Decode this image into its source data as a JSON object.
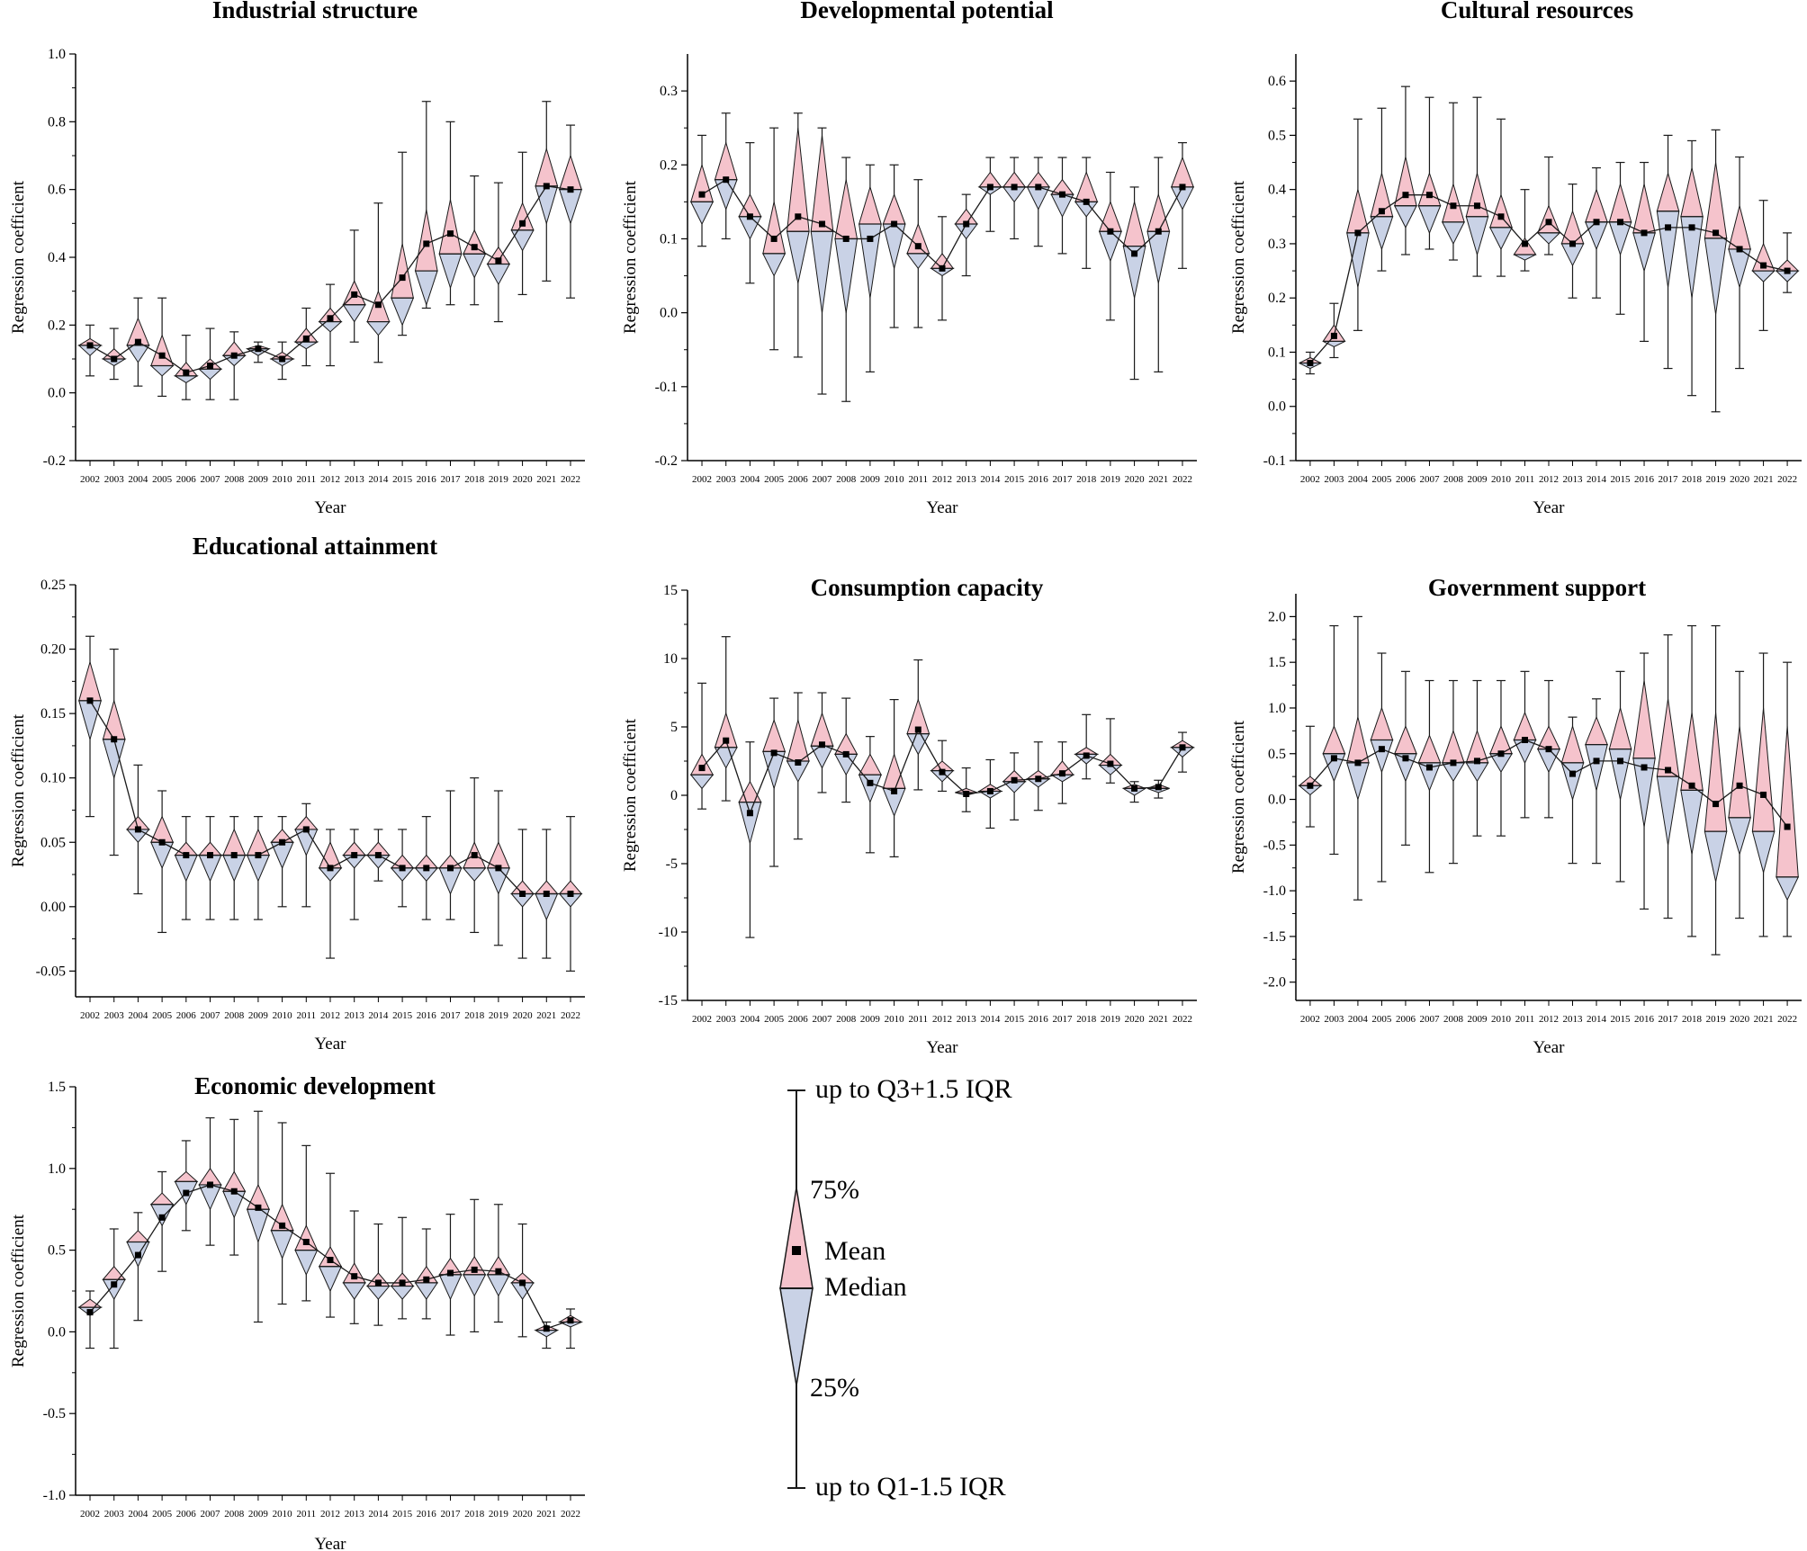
{
  "chart_data": [
    {
      "type": "violin-diamond",
      "title": "Industrial structure",
      "xlabel": "Year",
      "ylabel": "Regression coefficient",
      "ylim": [
        -0.2,
        1.0
      ],
      "yticks": [
        "-0.2",
        "0.0",
        "0.2",
        "0.4",
        "0.6",
        "0.8",
        "1.0"
      ],
      "categories": [
        "2002",
        "2003",
        "2004",
        "2005",
        "2006",
        "2007",
        "2008",
        "2009",
        "2010",
        "2011",
        "2012",
        "2013",
        "2014",
        "2015",
        "2016",
        "2017",
        "2018",
        "2019",
        "2020",
        "2021",
        "2022"
      ],
      "lower": [
        0.05,
        0.04,
        0.02,
        -0.01,
        -0.02,
        -0.02,
        -0.02,
        0.09,
        0.04,
        0.08,
        0.08,
        0.15,
        0.09,
        0.17,
        0.25,
        0.26,
        0.26,
        0.21,
        0.29,
        0.33,
        0.28
      ],
      "q1": [
        0.11,
        0.08,
        0.09,
        0.05,
        0.03,
        0.04,
        0.08,
        0.11,
        0.08,
        0.13,
        0.18,
        0.21,
        0.17,
        0.2,
        0.26,
        0.31,
        0.34,
        0.32,
        0.42,
        0.5,
        0.5
      ],
      "median": [
        0.14,
        0.1,
        0.14,
        0.08,
        0.05,
        0.07,
        0.11,
        0.13,
        0.1,
        0.15,
        0.21,
        0.26,
        0.21,
        0.28,
        0.36,
        0.41,
        0.41,
        0.38,
        0.48,
        0.61,
        0.6
      ],
      "q3": [
        0.16,
        0.13,
        0.22,
        0.17,
        0.09,
        0.1,
        0.15,
        0.14,
        0.12,
        0.19,
        0.25,
        0.33,
        0.3,
        0.44,
        0.54,
        0.57,
        0.48,
        0.43,
        0.56,
        0.72,
        0.7
      ],
      "upper": [
        0.2,
        0.19,
        0.28,
        0.28,
        0.17,
        0.19,
        0.18,
        0.15,
        0.15,
        0.25,
        0.32,
        0.48,
        0.56,
        0.71,
        0.86,
        0.8,
        0.64,
        0.62,
        0.71,
        0.86,
        0.79
      ],
      "mean": [
        0.14,
        0.1,
        0.15,
        0.11,
        0.06,
        0.08,
        0.11,
        0.13,
        0.1,
        0.16,
        0.22,
        0.29,
        0.26,
        0.34,
        0.44,
        0.47,
        0.43,
        0.39,
        0.5,
        0.61,
        0.6
      ]
    },
    {
      "type": "violin-diamond",
      "title": "Developmental potential",
      "xlabel": "Year",
      "ylabel": "Regression coefficient",
      "ylim": [
        -0.2,
        0.35
      ],
      "yticks": [
        "-0.2",
        "-0.1",
        "0.0",
        "0.1",
        "0.2",
        "0.3"
      ],
      "categories": [
        "2002",
        "2003",
        "2004",
        "2005",
        "2006",
        "2007",
        "2008",
        "2009",
        "2010",
        "2011",
        "2012",
        "2013",
        "2014",
        "2015",
        "2016",
        "2017",
        "2018",
        "2019",
        "2020",
        "2021",
        "2022"
      ],
      "lower": [
        0.09,
        0.1,
        0.04,
        -0.05,
        -0.06,
        -0.11,
        -0.12,
        -0.08,
        -0.02,
        -0.02,
        -0.01,
        0.05,
        0.11,
        0.1,
        0.09,
        0.08,
        0.06,
        -0.01,
        -0.09,
        -0.08,
        0.06
      ],
      "q1": [
        0.12,
        0.14,
        0.1,
        0.05,
        0.04,
        0.0,
        0.0,
        0.02,
        0.06,
        0.06,
        0.05,
        0.1,
        0.16,
        0.15,
        0.14,
        0.13,
        0.13,
        0.07,
        0.02,
        0.04,
        0.14
      ],
      "median": [
        0.15,
        0.18,
        0.13,
        0.08,
        0.11,
        0.11,
        0.1,
        0.12,
        0.12,
        0.08,
        0.06,
        0.12,
        0.17,
        0.17,
        0.17,
        0.16,
        0.15,
        0.11,
        0.09,
        0.11,
        0.17
      ],
      "q3": [
        0.2,
        0.23,
        0.16,
        0.15,
        0.25,
        0.24,
        0.18,
        0.17,
        0.16,
        0.12,
        0.08,
        0.14,
        0.19,
        0.19,
        0.19,
        0.18,
        0.19,
        0.15,
        0.15,
        0.16,
        0.21
      ],
      "upper": [
        0.24,
        0.27,
        0.23,
        0.25,
        0.27,
        0.25,
        0.21,
        0.2,
        0.2,
        0.18,
        0.13,
        0.16,
        0.21,
        0.21,
        0.21,
        0.21,
        0.21,
        0.19,
        0.17,
        0.21,
        0.23
      ],
      "mean": [
        0.16,
        0.18,
        0.13,
        0.1,
        0.13,
        0.12,
        0.1,
        0.1,
        0.12,
        0.09,
        0.06,
        0.12,
        0.17,
        0.17,
        0.17,
        0.16,
        0.15,
        0.11,
        0.08,
        0.11,
        0.17
      ]
    },
    {
      "type": "violin-diamond",
      "title": "Cultural resources",
      "xlabel": "Year",
      "ylabel": "Regression coefficient",
      "ylim": [
        -0.1,
        0.65
      ],
      "yticks": [
        "-0.1",
        "0.0",
        "0.1",
        "0.2",
        "0.3",
        "0.4",
        "0.5",
        "0.6"
      ],
      "categories": [
        "2002",
        "2003",
        "2004",
        "2005",
        "2006",
        "2007",
        "2008",
        "2009",
        "2010",
        "2011",
        "2012",
        "2013",
        "2014",
        "2015",
        "2016",
        "2017",
        "2018",
        "2019",
        "2020",
        "2021",
        "2022"
      ],
      "lower": [
        0.06,
        0.09,
        0.14,
        0.25,
        0.28,
        0.29,
        0.27,
        0.24,
        0.24,
        0.25,
        0.28,
        0.2,
        0.2,
        0.17,
        0.12,
        0.07,
        0.02,
        -0.01,
        0.07,
        0.14,
        0.21
      ],
      "q1": [
        0.07,
        0.11,
        0.22,
        0.29,
        0.33,
        0.32,
        0.3,
        0.28,
        0.29,
        0.27,
        0.3,
        0.26,
        0.29,
        0.28,
        0.25,
        0.22,
        0.2,
        0.17,
        0.22,
        0.23,
        0.23
      ],
      "median": [
        0.08,
        0.12,
        0.32,
        0.35,
        0.37,
        0.37,
        0.34,
        0.35,
        0.33,
        0.28,
        0.32,
        0.3,
        0.34,
        0.34,
        0.32,
        0.36,
        0.35,
        0.31,
        0.29,
        0.25,
        0.25
      ],
      "q3": [
        0.09,
        0.15,
        0.4,
        0.43,
        0.46,
        0.43,
        0.41,
        0.43,
        0.39,
        0.31,
        0.37,
        0.36,
        0.4,
        0.41,
        0.41,
        0.43,
        0.44,
        0.45,
        0.37,
        0.3,
        0.27
      ],
      "upper": [
        0.1,
        0.19,
        0.53,
        0.55,
        0.59,
        0.57,
        0.56,
        0.57,
        0.53,
        0.4,
        0.46,
        0.41,
        0.44,
        0.45,
        0.45,
        0.5,
        0.49,
        0.51,
        0.46,
        0.38,
        0.32
      ],
      "mean": [
        0.08,
        0.13,
        0.32,
        0.36,
        0.39,
        0.39,
        0.37,
        0.37,
        0.35,
        0.3,
        0.34,
        0.3,
        0.34,
        0.34,
        0.32,
        0.33,
        0.33,
        0.32,
        0.29,
        0.26,
        0.25
      ]
    },
    {
      "type": "violin-diamond",
      "title": "Educational attainment",
      "xlabel": "Year",
      "ylabel": "Regression coefficient",
      "ylim": [
        -0.07,
        0.25
      ],
      "yticks": [
        "-0.05",
        "0.00",
        "0.05",
        "0.10",
        "0.15",
        "0.20",
        "0.25"
      ],
      "categories": [
        "2002",
        "2003",
        "2004",
        "2005",
        "2006",
        "2007",
        "2008",
        "2009",
        "2010",
        "2011",
        "2012",
        "2013",
        "2014",
        "2015",
        "2016",
        "2017",
        "2018",
        "2019",
        "2020",
        "2021",
        "2022"
      ],
      "lower": [
        0.07,
        0.04,
        0.01,
        -0.02,
        -0.01,
        -0.01,
        -0.01,
        -0.01,
        0.0,
        0.0,
        -0.04,
        -0.01,
        0.02,
        0.0,
        -0.01,
        -0.01,
        -0.02,
        -0.03,
        -0.04,
        -0.04,
        -0.05
      ],
      "q1": [
        0.13,
        0.1,
        0.05,
        0.03,
        0.02,
        0.02,
        0.02,
        0.02,
        0.03,
        0.04,
        0.02,
        0.03,
        0.03,
        0.02,
        0.02,
        0.01,
        0.02,
        0.01,
        0.0,
        -0.01,
        0.0
      ],
      "median": [
        0.16,
        0.13,
        0.06,
        0.05,
        0.04,
        0.04,
        0.04,
        0.04,
        0.05,
        0.06,
        0.03,
        0.04,
        0.04,
        0.03,
        0.03,
        0.03,
        0.03,
        0.03,
        0.01,
        0.01,
        0.01
      ],
      "q3": [
        0.19,
        0.16,
        0.07,
        0.07,
        0.05,
        0.05,
        0.06,
        0.06,
        0.06,
        0.07,
        0.05,
        0.05,
        0.05,
        0.04,
        0.04,
        0.04,
        0.05,
        0.05,
        0.02,
        0.02,
        0.02
      ],
      "upper": [
        0.21,
        0.2,
        0.11,
        0.09,
        0.07,
        0.07,
        0.07,
        0.07,
        0.07,
        0.08,
        0.06,
        0.06,
        0.06,
        0.06,
        0.07,
        0.09,
        0.1,
        0.09,
        0.06,
        0.06,
        0.07
      ],
      "mean": [
        0.16,
        0.13,
        0.06,
        0.05,
        0.04,
        0.04,
        0.04,
        0.04,
        0.05,
        0.06,
        0.03,
        0.04,
        0.04,
        0.03,
        0.03,
        0.03,
        0.04,
        0.03,
        0.01,
        0.01,
        0.01
      ]
    },
    {
      "type": "violin-diamond",
      "title": "Consumption capacity",
      "xlabel": "Year",
      "ylabel": "Regression coefficient",
      "ylim": [
        -15,
        15
      ],
      "yticks": [
        "-15",
        "-10",
        "-5",
        "0",
        "5",
        "10",
        "15"
      ],
      "categories": [
        "2002",
        "2003",
        "2004",
        "2005",
        "2006",
        "2007",
        "2008",
        "2009",
        "2010",
        "2011",
        "2012",
        "2013",
        "2014",
        "2015",
        "2016",
        "2017",
        "2018",
        "2019",
        "2020",
        "2021",
        "2022"
      ],
      "lower": [
        -1,
        -0.4,
        -10.4,
        -5.2,
        -3.2,
        0.2,
        -0.5,
        -4.2,
        -4.5,
        0.4,
        0.3,
        -1.2,
        -2.4,
        -1.8,
        -1.1,
        -0.6,
        1.2,
        0.9,
        -0.5,
        -0.2,
        1.7
      ],
      "q1": [
        0.5,
        2,
        -3.5,
        0.5,
        1,
        2,
        1.5,
        -0.5,
        -1.5,
        3,
        1,
        0,
        -0.2,
        0.2,
        0.6,
        1,
        2.3,
        1.5,
        0,
        0.2,
        2.8
      ],
      "median": [
        1.5,
        3.5,
        -0.5,
        3.2,
        2.5,
        3.6,
        3,
        1.5,
        0.5,
        4.5,
        1.8,
        0.2,
        0.3,
        1,
        1.2,
        1.5,
        3,
        2.2,
        0.5,
        0.5,
        3.5
      ],
      "q3": [
        3,
        6,
        1,
        5.5,
        5.5,
        6,
        4.5,
        3,
        3,
        7,
        2.5,
        0.5,
        0.8,
        1.8,
        1.8,
        2.5,
        3.5,
        3,
        0.8,
        0.8,
        4
      ],
      "upper": [
        8.2,
        11.6,
        3.9,
        7.1,
        7.5,
        7.5,
        7.1,
        4.3,
        7,
        9.9,
        4,
        2,
        2.6,
        3.1,
        3.9,
        3.9,
        5.9,
        5.6,
        1,
        1.1,
        4.6
      ],
      "mean": [
        2,
        4,
        -1.3,
        3.1,
        2.4,
        3.7,
        3,
        0.9,
        0.3,
        4.8,
        1.7,
        0.1,
        0.3,
        1.1,
        1.2,
        1.6,
        2.9,
        2.3,
        0.5,
        0.6,
        3.5
      ]
    },
    {
      "type": "violin-diamond",
      "title": "Government support",
      "xlabel": "Year",
      "ylabel": "Regression coefficient",
      "ylim": [
        -2.2,
        2.25
      ],
      "yticks": [
        "-2.0",
        "-1.5",
        "-1.0",
        "-0.5",
        "0.0",
        "0.5",
        "1.0",
        "1.5",
        "2.0"
      ],
      "categories": [
        "2002",
        "2003",
        "2004",
        "2005",
        "2006",
        "2007",
        "2008",
        "2009",
        "2010",
        "2011",
        "2012",
        "2013",
        "2014",
        "2015",
        "2016",
        "2017",
        "2018",
        "2019",
        "2020",
        "2021",
        "2022"
      ],
      "lower": [
        -0.3,
        -0.6,
        -1.1,
        -0.9,
        -0.5,
        -0.8,
        -0.7,
        -0.4,
        -0.4,
        -0.2,
        -0.2,
        -0.7,
        -0.7,
        -0.9,
        -1.2,
        -1.3,
        -1.5,
        -1.7,
        -1.3,
        -1.5,
        -1.5
      ],
      "q1": [
        0.05,
        0.2,
        0,
        0.3,
        0.2,
        0.1,
        0.2,
        0.2,
        0.3,
        0.4,
        0.3,
        0,
        0.1,
        0,
        -0.3,
        -0.5,
        -0.6,
        -0.9,
        -0.6,
        -0.8,
        -1.1
      ],
      "median": [
        0.15,
        0.5,
        0.4,
        0.65,
        0.5,
        0.4,
        0.4,
        0.4,
        0.5,
        0.65,
        0.55,
        0.4,
        0.6,
        0.55,
        0.45,
        0.25,
        0.1,
        -0.35,
        -0.2,
        -0.35,
        -0.85
      ],
      "q3": [
        0.25,
        0.8,
        0.9,
        1,
        0.8,
        0.7,
        0.75,
        0.75,
        0.8,
        0.95,
        0.8,
        0.8,
        0.9,
        1,
        1.3,
        1.1,
        0.95,
        0.95,
        0.8,
        1,
        0.8
      ],
      "upper": [
        0.8,
        1.9,
        2,
        1.6,
        1.4,
        1.3,
        1.3,
        1.3,
        1.3,
        1.4,
        1.3,
        0.9,
        1.1,
        1.4,
        1.6,
        1.8,
        1.9,
        1.9,
        1.4,
        1.6,
        1.5
      ],
      "mean": [
        0.15,
        0.45,
        0.4,
        0.55,
        0.45,
        0.35,
        0.4,
        0.42,
        0.5,
        0.65,
        0.55,
        0.28,
        0.42,
        0.42,
        0.35,
        0.32,
        0.15,
        -0.05,
        0.15,
        0.05,
        -0.3
      ]
    },
    {
      "type": "violin-diamond",
      "title": "Economic development",
      "xlabel": "Year",
      "ylabel": "Regression coefficient",
      "ylim": [
        -1.0,
        1.5
      ],
      "yticks": [
        "-1.0",
        "-0.5",
        "0.0",
        "0.5",
        "1.0",
        "1.5"
      ],
      "categories": [
        "2002",
        "2003",
        "2004",
        "2005",
        "2006",
        "2007",
        "2008",
        "2009",
        "2010",
        "2011",
        "2012",
        "2013",
        "2014",
        "2015",
        "2016",
        "2017",
        "2018",
        "2019",
        "2020",
        "2021",
        "2022"
      ],
      "lower": [
        -0.1,
        -0.1,
        0.07,
        0.37,
        0.62,
        0.53,
        0.47,
        0.06,
        0.17,
        0.19,
        0.09,
        0.05,
        0.04,
        0.08,
        0.08,
        -0.02,
        0,
        0.06,
        -0.03,
        -0.1,
        -0.1
      ],
      "q1": [
        0.1,
        0.2,
        0.4,
        0.65,
        0.78,
        0.75,
        0.7,
        0.55,
        0.45,
        0.35,
        0.25,
        0.2,
        0.2,
        0.2,
        0.2,
        0.2,
        0.22,
        0.22,
        0.2,
        -0.03,
        0.03
      ],
      "median": [
        0.15,
        0.32,
        0.55,
        0.78,
        0.92,
        0.9,
        0.86,
        0.75,
        0.62,
        0.5,
        0.4,
        0.3,
        0.28,
        0.28,
        0.3,
        0.35,
        0.35,
        0.35,
        0.3,
        0.01,
        0.06
      ],
      "q3": [
        0.2,
        0.4,
        0.62,
        0.85,
        0.98,
        1.0,
        0.98,
        0.9,
        0.78,
        0.65,
        0.52,
        0.42,
        0.36,
        0.36,
        0.4,
        0.45,
        0.46,
        0.46,
        0.36,
        0.04,
        0.1
      ],
      "upper": [
        0.25,
        0.63,
        0.73,
        0.98,
        1.17,
        1.31,
        1.3,
        1.35,
        1.28,
        1.14,
        0.97,
        0.74,
        0.66,
        0.7,
        0.63,
        0.72,
        0.81,
        0.78,
        0.66,
        0.06,
        0.14
      ],
      "mean": [
        0.12,
        0.29,
        0.47,
        0.7,
        0.85,
        0.9,
        0.86,
        0.76,
        0.65,
        0.55,
        0.44,
        0.34,
        0.3,
        0.3,
        0.32,
        0.36,
        0.38,
        0.37,
        0.3,
        0.02,
        0.07
      ]
    }
  ],
  "legend": {
    "upper_label": "up to Q3+1.5 IQR",
    "q3_label": "75%",
    "mean_label": "Mean",
    "median_label": "Median",
    "q1_label": "25%",
    "lower_label": "up to Q1-1.5 IQR"
  },
  "colors": {
    "upper_fill": "#f5c3cc",
    "lower_fill": "#c9d2e6",
    "line": "#1a1a1a"
  }
}
